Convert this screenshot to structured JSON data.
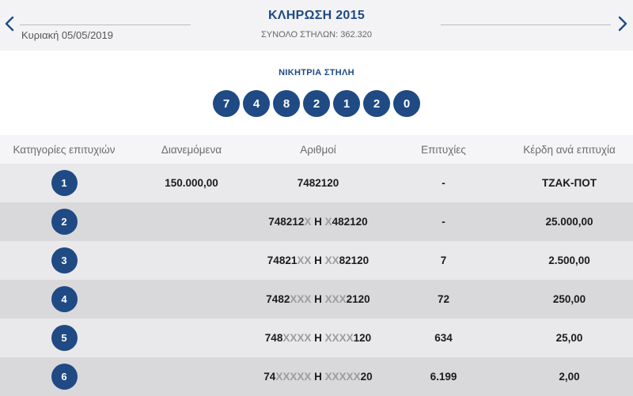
{
  "header": {
    "title": "ΚΛΗΡΩΣΗ 2015",
    "date": "Κυριακή 05/05/2019",
    "total_columns": "ΣΥΝΟΛΟ ΣΤΗΛΩΝ: 362.320",
    "prev_icon": "chevron-left-icon",
    "next_icon": "chevron-right-icon"
  },
  "winning": {
    "label": "ΝΙΚΗΤΡΙΑ ΣΤΗΛΗ",
    "digits": [
      "7",
      "4",
      "8",
      "2",
      "1",
      "2",
      "0"
    ]
  },
  "table": {
    "headers": {
      "category": "Κατηγορίες επιτυχιών",
      "distributed": "Διανεμόμενα",
      "numbers": "Αριθμοί",
      "winners": "Επιτυχίες",
      "prize": "Κέρδη ανά επιτυχία"
    },
    "rows": [
      {
        "category": "1",
        "distributed": "150.000,00",
        "numbers_a": "7482120",
        "numbers_a_x": "",
        "separator": "",
        "numbers_b_x": "",
        "numbers_b": "",
        "winners": "-",
        "prize": "ΤΖΑΚ-ΠΟΤ"
      },
      {
        "category": "2",
        "distributed": "",
        "numbers_a": "748212",
        "numbers_a_x": "X",
        "separator": " Η ",
        "numbers_b_x": "X",
        "numbers_b": "482120",
        "winners": "-",
        "prize": "25.000,00"
      },
      {
        "category": "3",
        "distributed": "",
        "numbers_a": "74821",
        "numbers_a_x": "XX",
        "separator": " Η ",
        "numbers_b_x": "XX",
        "numbers_b": "82120",
        "winners": "7",
        "prize": "2.500,00"
      },
      {
        "category": "4",
        "distributed": "",
        "numbers_a": "7482",
        "numbers_a_x": "XXX",
        "separator": " Η ",
        "numbers_b_x": "XXX",
        "numbers_b": "2120",
        "winners": "72",
        "prize": "250,00"
      },
      {
        "category": "5",
        "distributed": "",
        "numbers_a": "748",
        "numbers_a_x": "XXXX",
        "separator": " Η ",
        "numbers_b_x": "XXXX",
        "numbers_b": "120",
        "winners": "634",
        "prize": "25,00"
      },
      {
        "category": "6",
        "distributed": "",
        "numbers_a": "74",
        "numbers_a_x": "XXXXX",
        "separator": " Η ",
        "numbers_b_x": "XXXXX",
        "numbers_b": "20",
        "winners": "6.199",
        "prize": "2,00"
      }
    ]
  },
  "colors": {
    "brand_blue": "#1f4a84",
    "masked_digit": "#9c9c9c"
  }
}
